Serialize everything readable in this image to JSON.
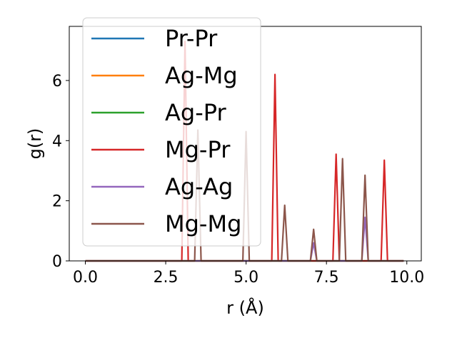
{
  "chart_data": {
    "type": "line",
    "title": "",
    "xlabel": "r (Å)",
    "ylabel": "g(r)",
    "xlim": [
      -0.5,
      10.45
    ],
    "ylim": [
      0,
      7.8
    ],
    "xticks": [
      0.0,
      2.5,
      5.0,
      7.5,
      10.0
    ],
    "xtick_labels": [
      "0.0",
      "2.5",
      "5.0",
      "7.5",
      "10.0"
    ],
    "yticks": [
      0,
      2,
      4,
      6
    ],
    "ytick_labels": [
      "0",
      "2",
      "4",
      "6"
    ],
    "grid": false,
    "legend_position": "top-left",
    "series": [
      {
        "name": "Pr-Pr",
        "color": "#1f77b4",
        "x": [
          0.0,
          9.9
        ],
        "y": [
          0,
          0
        ]
      },
      {
        "name": "Ag-Mg",
        "color": "#ff7f0e",
        "x": [
          0.0,
          9.9
        ],
        "y": [
          0,
          0
        ]
      },
      {
        "name": "Ag-Pr",
        "color": "#2ca02c",
        "x": [
          0.0,
          9.9
        ],
        "y": [
          0,
          0
        ]
      },
      {
        "name": "Mg-Pr",
        "color": "#d62728",
        "x": [
          0.0,
          3.0,
          3.1,
          3.2,
          5.7,
          5.8,
          5.9,
          6.0,
          7.7,
          7.8,
          7.9,
          9.2,
          9.3,
          9.4,
          9.9
        ],
        "y": [
          0,
          0,
          7.3,
          0,
          0,
          0,
          6.2,
          0,
          0,
          3.55,
          0,
          0,
          3.35,
          0,
          0
        ]
      },
      {
        "name": "Ag-Ag",
        "color": "#9467bd",
        "x": [
          0.0,
          7.0,
          7.1,
          7.2,
          8.6,
          8.7,
          8.8,
          9.9
        ],
        "y": [
          0,
          0,
          0.6,
          0,
          0,
          1.45,
          0,
          0
        ]
      },
      {
        "name": "Mg-Mg",
        "color": "#8c564b",
        "x": [
          0.0,
          3.4,
          3.5,
          3.6,
          4.9,
          5.0,
          5.1,
          6.1,
          6.2,
          6.3,
          7.0,
          7.1,
          7.2,
          7.9,
          8.0,
          8.1,
          8.6,
          8.7,
          8.8,
          9.9
        ],
        "y": [
          0,
          0,
          4.35,
          0,
          0,
          4.3,
          0,
          0,
          1.85,
          0,
          0,
          1.05,
          0,
          0,
          3.4,
          0,
          0,
          2.85,
          0,
          0
        ]
      }
    ]
  }
}
